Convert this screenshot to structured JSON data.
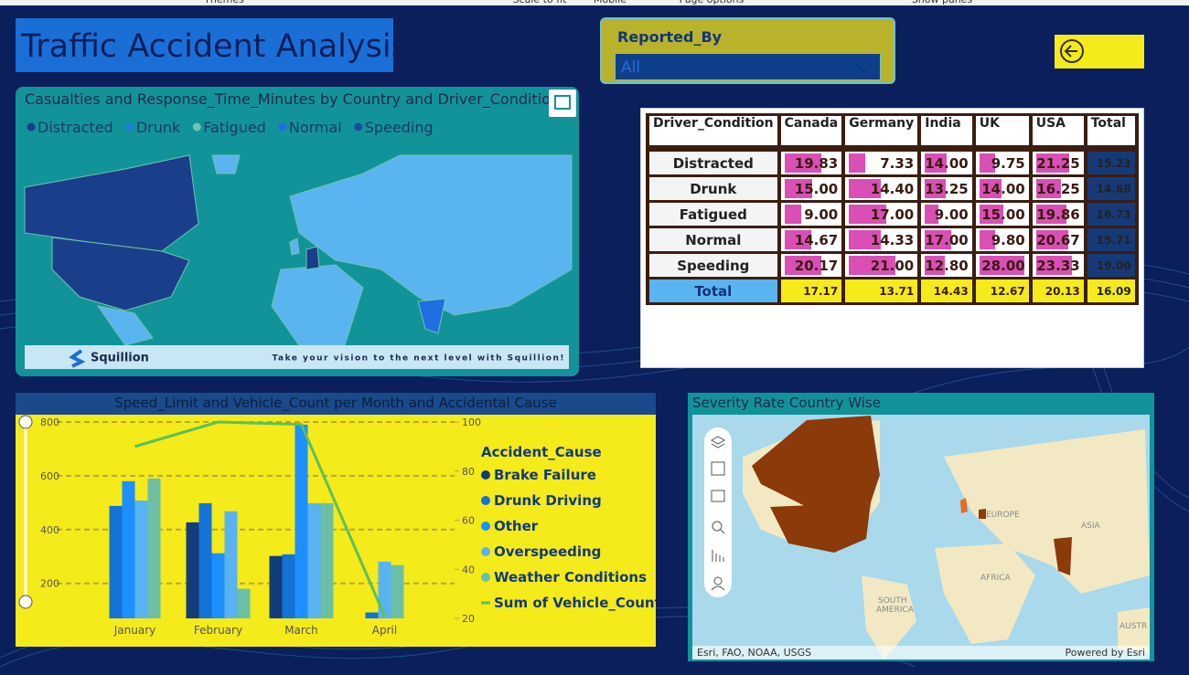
{
  "top_bar": [
    "Themes",
    "Scale to fit",
    "Mobile",
    "Page options",
    "Show panes"
  ],
  "header": {
    "title": "Traffic Accident Analysis"
  },
  "slicer": {
    "label": "Reported_By",
    "value": "All"
  },
  "map1": {
    "title": "Casualties and Response_Time_Minutes by Country and Driver_Condition",
    "legend": [
      {
        "name": "Distracted",
        "color": "#1a3f8a"
      },
      {
        "name": "Drunk",
        "color": "#1e7fd8"
      },
      {
        "name": "Fatigued",
        "color": "#6fc3b0"
      },
      {
        "name": "Normal",
        "color": "#1f6fe0"
      },
      {
        "name": "Speeding",
        "color": "#1b4f9a"
      }
    ],
    "brand": "Squillion",
    "tagline": "Take your vision to the next level with Squillion!"
  },
  "table": {
    "header": [
      "Driver_Condition",
      "Canada",
      "Germany",
      "India",
      "UK",
      "USA",
      "Total"
    ],
    "rows": [
      [
        "Distracted",
        "19.83",
        "7.33",
        "14.00",
        "9.75",
        "21.25",
        "15.23"
      ],
      [
        "Drunk",
        "15.00",
        "14.40",
        "13.25",
        "14.00",
        "16.25",
        "14.68"
      ],
      [
        "Fatigued",
        "9.00",
        "17.00",
        "9.00",
        "15.00",
        "19.86",
        "16.73"
      ],
      [
        "Normal",
        "14.67",
        "14.33",
        "17.00",
        "9.80",
        "20.67",
        "15.71"
      ],
      [
        "Speeding",
        "20.17",
        "21.00",
        "12.80",
        "28.00",
        "23.33",
        "19.00"
      ]
    ],
    "total": [
      "Total",
      "17.17",
      "13.71",
      "14.43",
      "12.67",
      "20.13",
      "16.09"
    ]
  },
  "chart_data": {
    "type": "combo",
    "title": "Speed_Limit and Vehicle_Count per Month and Accidental Cause",
    "categories": [
      "January",
      "February",
      "March",
      "April"
    ],
    "legend_title": "Accident_Cause",
    "series": [
      {
        "name": "Brake Failure",
        "color": "#123d7a",
        "values": [
          null,
          427,
          302,
          null
        ]
      },
      {
        "name": "Drunk Driving",
        "color": "#1572d6",
        "values": [
          488,
          498,
          308,
          92
        ]
      },
      {
        "name": "Other",
        "color": "#1e8fff",
        "values": [
          580,
          312,
          790,
          null
        ]
      },
      {
        "name": "Overspeeding",
        "color": "#58b3f0",
        "values": [
          508,
          468,
          498,
          281
        ]
      },
      {
        "name": "Weather Conditions",
        "color": "#6cbfa6",
        "values": [
          590,
          180,
          498,
          268
        ]
      },
      {
        "name": "Sum of Vehicle_Count",
        "color": "#5cc05c",
        "type": "line",
        "axis": "y2",
        "values": [
          90,
          100,
          99,
          21
        ]
      }
    ],
    "ylim": [
      70,
      800
    ],
    "yticks": [
      200,
      400,
      600,
      800
    ],
    "y2lim": [
      20,
      100
    ],
    "y2ticks": [
      20,
      40,
      60,
      80,
      100
    ],
    "grid": true
  },
  "map2": {
    "title": "Severity Rate Country Wise",
    "regions": [
      "EUROPE",
      "ASIA",
      "AFRICA",
      "SOUTH",
      "AMERICA",
      "AUSTR"
    ],
    "attribution": "Esri, FAO, NOAA, USGS",
    "powered": "Powered by Esri"
  }
}
